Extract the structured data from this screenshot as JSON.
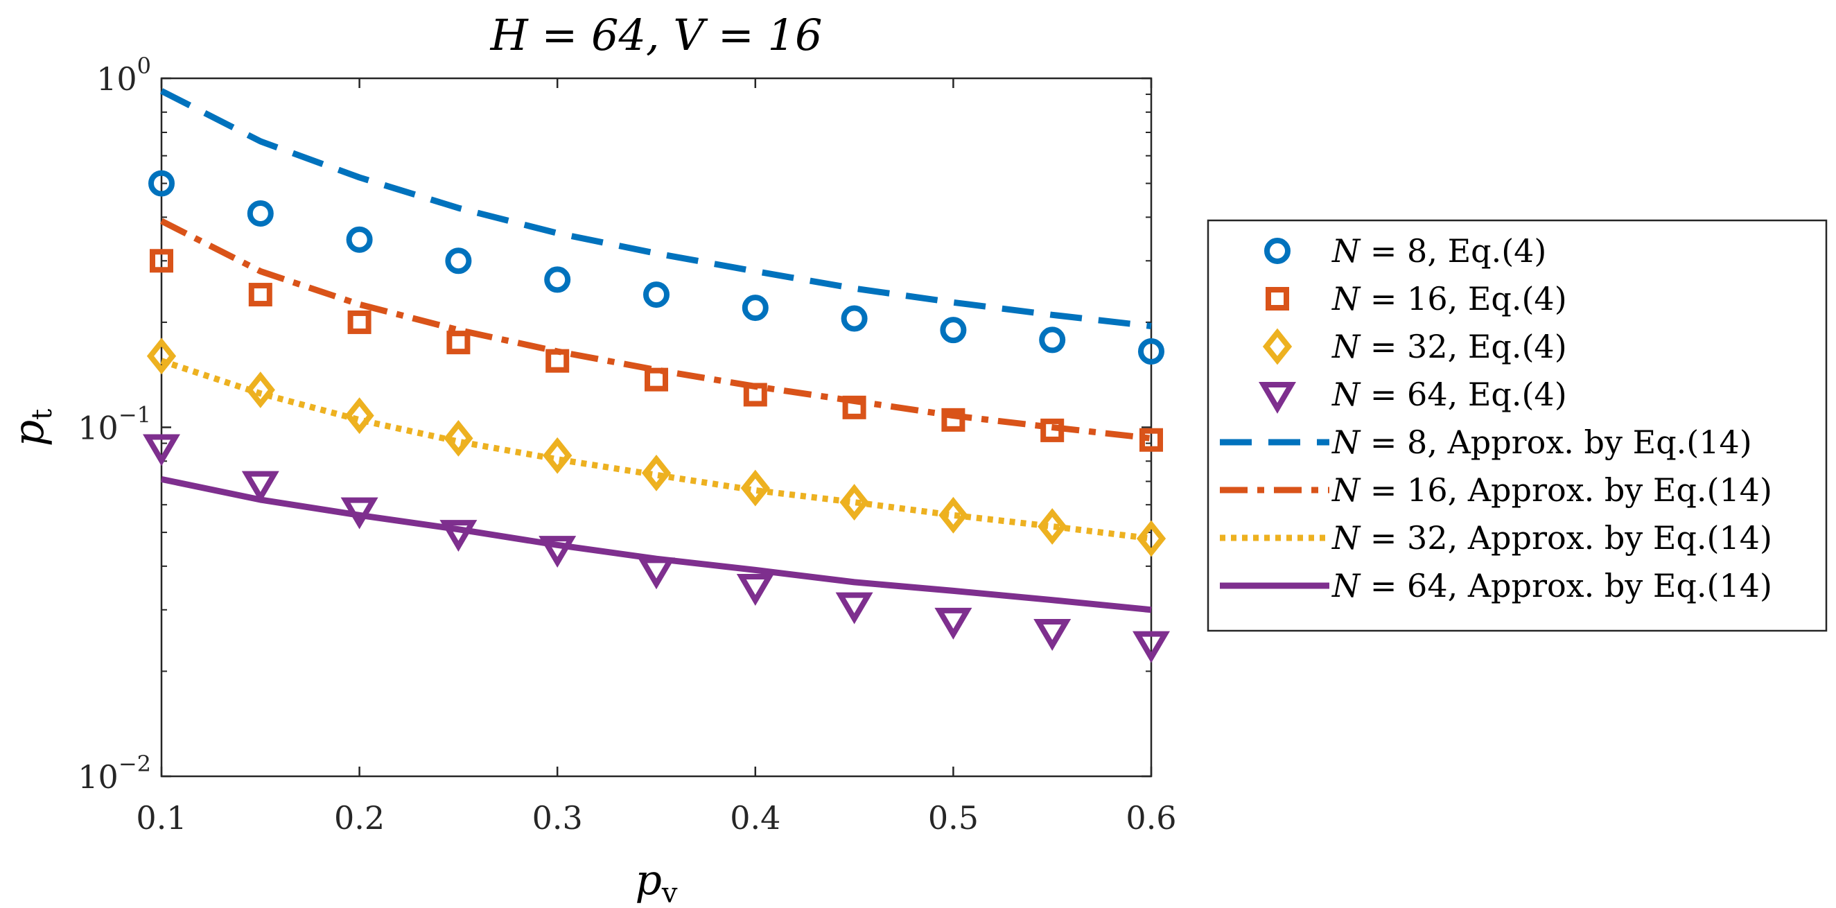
{
  "chart_data": {
    "type": "line",
    "title": "H = 64, V = 16",
    "xlabel": "p",
    "xlabel_sub": "v",
    "ylabel": "p",
    "ylabel_sub": "t",
    "xscale": "linear",
    "yscale": "log",
    "xlim": [
      0.1,
      0.6
    ],
    "ylim": [
      0.01,
      1
    ],
    "grid": false,
    "legend_position": "outside-right",
    "x_ticks": [
      0.1,
      0.2,
      0.3,
      0.4,
      0.5,
      0.6
    ],
    "x_tick_labels": [
      "0.1",
      "0.2",
      "0.3",
      "0.4",
      "0.5",
      "0.6"
    ],
    "y_ticks": [
      {
        "value": 1,
        "base": "10",
        "exp": "0"
      },
      {
        "value": 0.1,
        "base": "10",
        "exp": "−1"
      },
      {
        "value": 0.01,
        "base": "10",
        "exp": "−2"
      }
    ],
    "x": [
      0.1,
      0.15,
      0.2,
      0.25,
      0.3,
      0.35,
      0.4,
      0.45,
      0.5,
      0.55,
      0.6
    ],
    "series": [
      {
        "name": "N = 8, Eq.(4)",
        "style": "marker",
        "marker": "circle",
        "color": "#0072BD",
        "values": [
          0.5,
          0.41,
          0.345,
          0.3,
          0.265,
          0.24,
          0.22,
          0.205,
          0.19,
          0.178,
          0.165
        ]
      },
      {
        "name": "N = 16, Eq.(4)",
        "style": "marker",
        "marker": "square",
        "color": "#D95319",
        "values": [
          0.3,
          0.24,
          0.2,
          0.175,
          0.155,
          0.137,
          0.124,
          0.114,
          0.105,
          0.098,
          0.092
        ]
      },
      {
        "name": "N = 32, Eq.(4)",
        "style": "marker",
        "marker": "diamond",
        "color": "#EDB120",
        "values": [
          0.16,
          0.128,
          0.108,
          0.093,
          0.083,
          0.074,
          0.067,
          0.061,
          0.056,
          0.052,
          0.048
        ]
      },
      {
        "name": "N = 64, Eq.(4)",
        "style": "marker",
        "marker": "triangle-down",
        "color": "#7E2F8E",
        "values": [
          0.088,
          0.069,
          0.058,
          0.05,
          0.045,
          0.039,
          0.035,
          0.031,
          0.028,
          0.026,
          0.024
        ]
      },
      {
        "name": "N = 8, Approx. by Eq.(14)",
        "style": "dashed",
        "color": "#0072BD",
        "values": [
          0.92,
          0.66,
          0.52,
          0.425,
          0.36,
          0.315,
          0.28,
          0.25,
          0.228,
          0.21,
          0.195
        ]
      },
      {
        "name": "N = 16, Approx. by Eq.(14)",
        "style": "dashdot",
        "color": "#D95319",
        "values": [
          0.39,
          0.28,
          0.225,
          0.19,
          0.165,
          0.146,
          0.131,
          0.119,
          0.108,
          0.1,
          0.093
        ]
      },
      {
        "name": "N = 32, Approx. by Eq.(14)",
        "style": "dotted",
        "color": "#EDB120",
        "values": [
          0.155,
          0.125,
          0.105,
          0.091,
          0.081,
          0.073,
          0.066,
          0.061,
          0.056,
          0.052,
          0.048
        ]
      },
      {
        "name": "N = 64, Approx. by Eq.(14)",
        "style": "solid",
        "color": "#7E2F8E",
        "values": [
          0.071,
          0.062,
          0.056,
          0.051,
          0.046,
          0.042,
          0.039,
          0.036,
          0.034,
          0.032,
          0.03
        ]
      }
    ],
    "legend": [
      {
        "n": "N",
        "eq": "=",
        "num": "8",
        "desc": ", Eq.(4)"
      },
      {
        "n": "N",
        "eq": "=",
        "num": "16",
        "desc": ", Eq.(4)"
      },
      {
        "n": "N",
        "eq": "=",
        "num": "32",
        "desc": ", Eq.(4)"
      },
      {
        "n": "N",
        "eq": "=",
        "num": "64",
        "desc": ", Eq.(4)"
      },
      {
        "n": "N",
        "eq": "=",
        "num": "8",
        "desc": ", Approx. by Eq.(14)"
      },
      {
        "n": "N",
        "eq": "=",
        "num": "16",
        "desc": ", Approx. by Eq.(14)"
      },
      {
        "n": "N",
        "eq": "=",
        "num": "32",
        "desc": ", Approx. by Eq.(14)"
      },
      {
        "n": "N",
        "eq": "=",
        "num": "64",
        "desc": ", Approx. by Eq.(14)"
      }
    ]
  }
}
